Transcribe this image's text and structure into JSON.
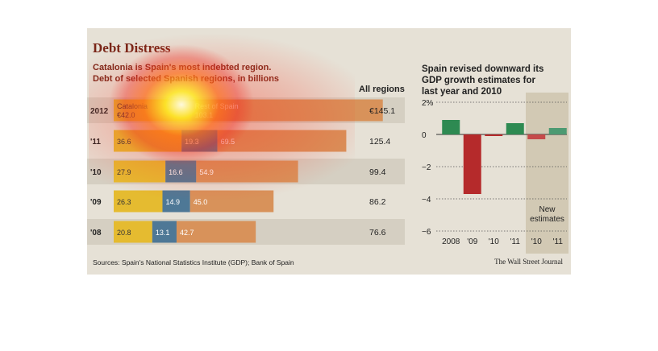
{
  "title": "Debt Distress",
  "subtitle_line1": "Catalonia is Spain's most indebted region.",
  "subtitle_line2": "Debt of selected Spanish regions, in billions",
  "all_regions_header": "All regions",
  "right_title_line1": "Spain revised downward its",
  "right_title_line2": "GDP growth estimates for",
  "right_title_line3": "last year and 2010",
  "sources": "Sources: Spain's National Statistics Institute (GDP); Bank of Spain",
  "publisher": "The Wall Street Journal",
  "colors": {
    "panel": "#e6e1d6",
    "catalonia": "#e5bb30",
    "other_region": "#4e7896",
    "rest_of_spain": "#d8925a",
    "positive": "#2e8a52",
    "negative": "#b52a2b",
    "estimate_band": "#d2c9b4"
  },
  "chart_data": [
    {
      "type": "bar",
      "orientation": "horizontal-stacked",
      "categories": [
        "2012",
        "'11",
        "'10",
        "'09",
        "'08"
      ],
      "series": [
        {
          "name": "Catalonia",
          "values": [
            42.0,
            36.6,
            27.9,
            26.3,
            20.8
          ],
          "labels": [
            "€42.0",
            "36.6",
            "27.9",
            "26.3",
            "20.8"
          ]
        },
        {
          "values": [
            null,
            19.3,
            16.6,
            14.9,
            13.1
          ],
          "labels": [
            "",
            "19.3",
            "16.6",
            "14.9",
            "13.1"
          ]
        },
        {
          "name": "Rest of Spain",
          "values": [
            103.1,
            69.5,
            54.9,
            45.0,
            42.7
          ],
          "labels": [
            "103.1",
            "69.5",
            "54.9",
            "45.0",
            "42.7"
          ]
        }
      ],
      "totals": [
        "€145.1",
        "125.4",
        "99.4",
        "86.2",
        "76.6"
      ],
      "legend_labels": [
        "Catalonia",
        "Rest of Spain"
      ],
      "total_header": "All regions"
    },
    {
      "type": "bar",
      "categories": [
        "2008",
        "'09",
        "'10",
        "'11",
        "'10",
        "'11"
      ],
      "values": [
        0.9,
        -3.7,
        -0.1,
        0.7,
        -0.3,
        0.4
      ],
      "ylim": [
        -6,
        2
      ],
      "yticks": [
        "2%",
        "0",
        "−2",
        "−4",
        "−6"
      ],
      "ytick_values": [
        2,
        0,
        -2,
        -4,
        -6
      ],
      "annotation_line1": "New",
      "annotation_line2": "estimates",
      "estimate_indices": [
        4,
        5
      ]
    }
  ]
}
